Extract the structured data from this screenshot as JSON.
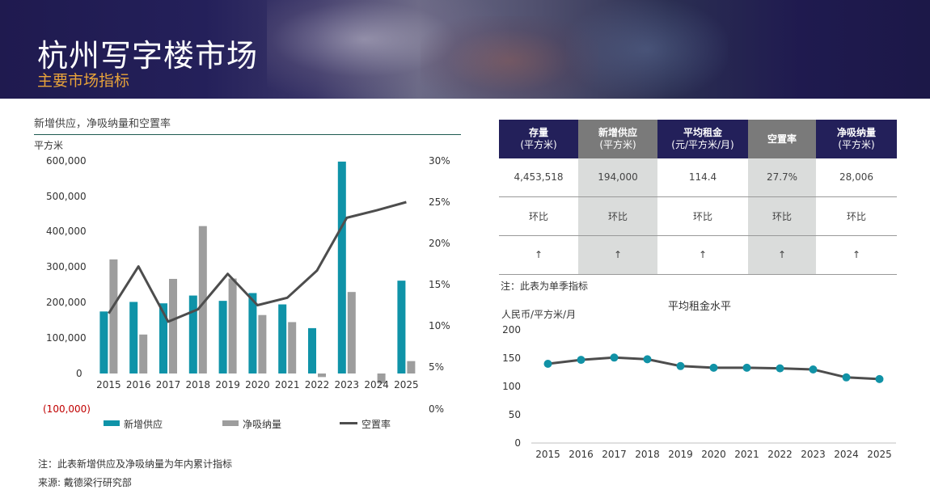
{
  "header": {
    "title": "杭州写字楼市场",
    "subtitle": "主要市场指标"
  },
  "left_chart": {
    "title": "新增供应，净吸纳量和空置率",
    "y_unit": "平方米",
    "y_ticks": [
      "600,000",
      "500,000",
      "400,000",
      "300,000",
      "200,000",
      "100,000",
      "0",
      "(100,000)"
    ],
    "y2_ticks": [
      "30%",
      "25%",
      "20%",
      "15%",
      "10%",
      "5%",
      "0%"
    ],
    "legend": [
      "新增供应",
      "净吸纳量",
      "空置率"
    ],
    "note": "注：此表新增供应及净吸纳量为年内累计指标",
    "source": "来源: 戴德梁行研究部"
  },
  "kpi": {
    "headers": [
      {
        "label": "存量",
        "unit": "(平方米)"
      },
      {
        "label": "新增供应",
        "unit": "(平方米)"
      },
      {
        "label": "平均租金",
        "unit": "(元/平方米/月)"
      },
      {
        "label": "空置率",
        "unit": ""
      },
      {
        "label": "净吸纳量",
        "unit": "(平方米)"
      }
    ],
    "values": [
      "4,453,518",
      "194,000",
      "114.4",
      "27.7%",
      "28,006"
    ],
    "change_label": [
      "环比",
      "环比",
      "环比",
      "环比",
      "环比"
    ],
    "trend": [
      "↑",
      "↑",
      "↑",
      "↑",
      "↑"
    ],
    "note": "注：此表为单季指标"
  },
  "right_chart": {
    "title": "平均租金水平",
    "y_unit": "人民币/平方米/月"
  },
  "chart_data": [
    {
      "type": "bar",
      "title": "新增供应，净吸纳量和空置率",
      "ylabel": "平方米",
      "categories": [
        "2015",
        "2016",
        "2017",
        "2018",
        "2019",
        "2020",
        "2021",
        "2022",
        "2023",
        "2024",
        "2025"
      ],
      "ylim": [
        -100000,
        600000
      ],
      "y2lim": [
        0,
        30
      ],
      "series": [
        {
          "name": "新增供应",
          "type": "bar",
          "color": "#0f93a8",
          "values": [
            175000,
            202000,
            198000,
            220000,
            205000,
            227000,
            195000,
            128000,
            598000,
            0,
            262000
          ]
        },
        {
          "name": "净吸纳量",
          "type": "bar",
          "color": "#9d9d9d",
          "values": [
            322000,
            110000,
            267000,
            416000,
            268000,
            165000,
            145000,
            -10000,
            230000,
            -28000,
            35000
          ]
        },
        {
          "name": "空置率",
          "type": "line",
          "axis": "right",
          "color": "#4d4d4d",
          "values": [
            11.5,
            17.2,
            10.5,
            12.0,
            16.3,
            12.5,
            13.4,
            16.7,
            23.1,
            24.0,
            25.0
          ]
        }
      ]
    },
    {
      "type": "line",
      "title": "平均租金水平",
      "ylabel": "人民币/平方米/月",
      "x": [
        "2015",
        "2016",
        "2017",
        "2018",
        "2019",
        "2020",
        "2021",
        "2022",
        "2023",
        "2024",
        "2025"
      ],
      "y_ticks": [
        0,
        50,
        100,
        150,
        200
      ],
      "ylim": [
        0,
        200
      ],
      "series": [
        {
          "name": "",
          "color": "#4d4d4d",
          "marker_color": "#1192a6",
          "values": [
            140,
            147,
            151,
            148,
            136,
            133,
            133,
            132,
            130,
            116,
            113
          ]
        }
      ]
    }
  ]
}
